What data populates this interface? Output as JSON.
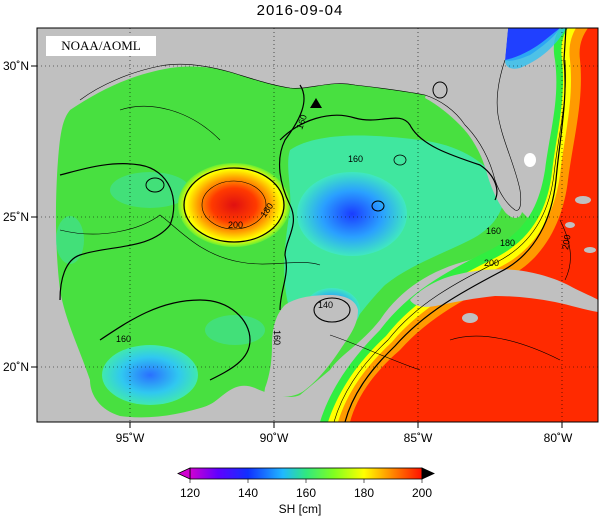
{
  "title": "2016-09-04",
  "watermark": "NOAA/AOML",
  "colorbar": {
    "label": "SH [cm]",
    "ticks": [
      "120",
      "140",
      "160",
      "180",
      "200"
    ],
    "min": 120,
    "max": 200
  },
  "axes": {
    "lon_labels": [
      "95˚W",
      "90˚W",
      "85˚W",
      "80˚W"
    ],
    "lat_labels": [
      "30˚N",
      "25˚N",
      "20˚N"
    ]
  },
  "contour_labels": [
    "160",
    "160",
    "200",
    "180",
    "160",
    "140",
    "160",
    "160",
    "180",
    "200",
    "200"
  ],
  "marker": "triangle-marker",
  "colors": {
    "land": "#c0c0c0",
    "high": "#ff2200",
    "low": "#1a3cff",
    "mid": "#33dd44"
  }
}
